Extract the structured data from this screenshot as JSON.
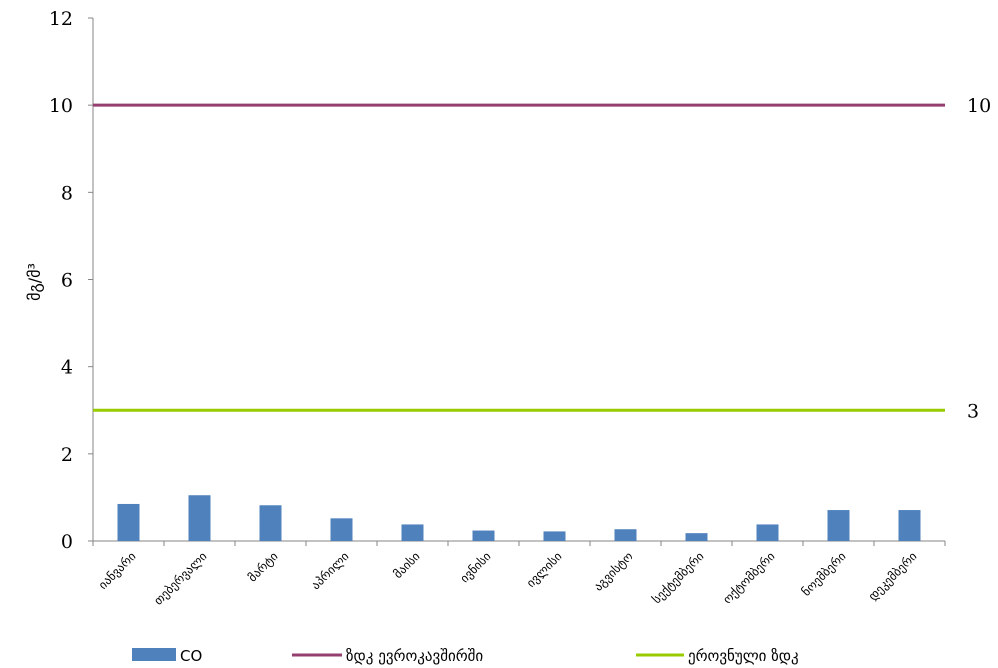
{
  "chart_data": {
    "type": "bar",
    "title": "",
    "xlabel": "",
    "ylabel": "მგ/მ³",
    "ylim": [
      0,
      12
    ],
    "yticks": [
      0,
      2,
      4,
      6,
      8,
      10,
      12
    ],
    "grid": false,
    "legend_position": "bottom",
    "categories": [
      "იანვარი",
      "თებერვალი",
      "მარტი",
      "აპრილი",
      "მაისი",
      "ივნისი",
      "ივლისი",
      "აგვისტო",
      "სექტემბერი",
      "ოქტომბერი",
      "ნოემბერი",
      "დეკემბერი"
    ],
    "series": [
      {
        "name": "CO",
        "values": [
          0.85,
          1.05,
          0.82,
          0.52,
          0.38,
          0.24,
          0.22,
          0.27,
          0.18,
          0.38,
          0.71,
          0.71
        ],
        "color": "#4F81BD"
      }
    ],
    "reference_lines": [
      {
        "name": "ზდკ ევროკავშირში",
        "value": 10,
        "label": "10",
        "color": "#953F70"
      },
      {
        "name": "ეროვნული ზდკ",
        "value": 3,
        "label": "3",
        "color": "#99CC00"
      }
    ]
  }
}
